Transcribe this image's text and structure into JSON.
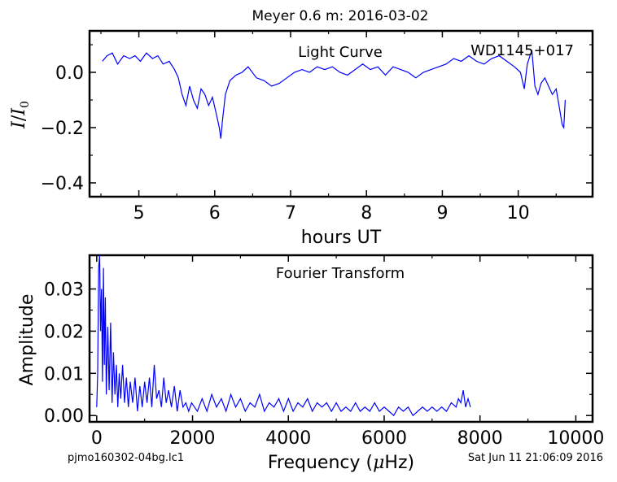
{
  "figure": {
    "title": "Meyer 0.6 m:  2016-03-02",
    "footer_left": "pjmo160302-04bg.lc1",
    "footer_right": "Sat Jun 11 21:06:09 2016",
    "line_color": "#0000ff"
  },
  "chart_data": [
    {
      "type": "line",
      "title": "Light Curve",
      "annotation": "WD1145+017",
      "xlabel": "hours UT",
      "ylabel_symbol": "I",
      "ylabel_denominator": "I",
      "ylabel_subscript": "0",
      "xlim": [
        4.35,
        10.98
      ],
      "ylim": [
        -0.45,
        0.15
      ],
      "xticks": [
        5,
        6,
        7,
        8,
        9,
        10
      ],
      "yticks": [
        0.0,
        -0.2,
        -0.4
      ],
      "ytick_labels": [
        "0.0",
        "−0.2",
        "−0.4"
      ],
      "x": [
        4.52,
        4.58,
        4.65,
        4.72,
        4.8,
        4.88,
        4.95,
        5.02,
        5.1,
        5.18,
        5.25,
        5.32,
        5.4,
        5.47,
        5.52,
        5.57,
        5.62,
        5.67,
        5.72,
        5.77,
        5.82,
        5.87,
        5.92,
        5.97,
        6.02,
        6.06,
        6.08,
        6.1,
        6.14,
        6.2,
        6.28,
        6.36,
        6.44,
        6.55,
        6.65,
        6.75,
        6.85,
        6.95,
        7.05,
        7.15,
        7.25,
        7.35,
        7.45,
        7.55,
        7.65,
        7.75,
        7.85,
        7.95,
        8.05,
        8.15,
        8.25,
        8.35,
        8.45,
        8.55,
        8.65,
        8.75,
        8.85,
        8.95,
        9.05,
        9.15,
        9.25,
        9.35,
        9.45,
        9.55,
        9.65,
        9.75,
        9.85,
        9.95,
        10.03,
        10.08,
        10.12,
        10.18,
        10.22,
        10.26,
        10.3,
        10.35,
        10.4,
        10.45,
        10.5,
        10.55,
        10.58,
        10.6,
        10.62
      ],
      "y": [
        0.04,
        0.06,
        0.07,
        0.03,
        0.06,
        0.05,
        0.06,
        0.04,
        0.07,
        0.05,
        0.06,
        0.03,
        0.04,
        0.01,
        -0.02,
        -0.08,
        -0.12,
        -0.05,
        -0.1,
        -0.13,
        -0.06,
        -0.08,
        -0.12,
        -0.09,
        -0.15,
        -0.2,
        -0.24,
        -0.18,
        -0.08,
        -0.03,
        -0.01,
        0.0,
        0.02,
        -0.02,
        -0.03,
        -0.05,
        -0.04,
        -0.02,
        0.0,
        0.01,
        0.0,
        0.02,
        0.01,
        0.02,
        0.0,
        -0.01,
        0.01,
        0.03,
        0.01,
        0.02,
        -0.01,
        0.02,
        0.01,
        0.0,
        -0.02,
        0.0,
        0.01,
        0.02,
        0.03,
        0.05,
        0.04,
        0.06,
        0.04,
        0.03,
        0.05,
        0.06,
        0.04,
        0.02,
        0.0,
        -0.06,
        0.03,
        0.08,
        -0.05,
        -0.08,
        -0.04,
        -0.02,
        -0.05,
        -0.08,
        -0.06,
        -0.14,
        -0.19,
        -0.2,
        -0.1
      ]
    },
    {
      "type": "line",
      "title": "Fourier Transform",
      "xlabel_prefix": "Frequency (",
      "xlabel_mu": "μ",
      "xlabel_suffix": "Hz)",
      "ylabel": "Amplitude",
      "xlim": [
        -150,
        10350
      ],
      "ylim": [
        -0.0015,
        0.038
      ],
      "xticks": [
        0,
        2000,
        4000,
        6000,
        8000,
        10000
      ],
      "yticks": [
        0.0,
        0.01,
        0.02,
        0.03
      ],
      "ytick_labels": [
        "0.00",
        "0.01",
        "0.02",
        "0.03"
      ],
      "x": [
        0,
        20,
        40,
        60,
        80,
        100,
        120,
        140,
        160,
        180,
        200,
        230,
        260,
        290,
        320,
        350,
        380,
        410,
        440,
        470,
        500,
        540,
        580,
        620,
        660,
        700,
        750,
        800,
        850,
        900,
        950,
        1000,
        1050,
        1100,
        1150,
        1200,
        1250,
        1300,
        1350,
        1400,
        1450,
        1500,
        1560,
        1620,
        1680,
        1740,
        1800,
        1860,
        1920,
        1980,
        2040,
        2100,
        2200,
        2300,
        2400,
        2500,
        2600,
        2700,
        2800,
        2900,
        3000,
        3100,
        3200,
        3300,
        3400,
        3500,
        3600,
        3700,
        3800,
        3900,
        4000,
        4100,
        4200,
        4300,
        4400,
        4500,
        4600,
        4700,
        4800,
        4900,
        5000,
        5100,
        5200,
        5300,
        5400,
        5500,
        5600,
        5700,
        5800,
        5900,
        6000,
        6100,
        6200,
        6300,
        6400,
        6500,
        6600,
        6700,
        6800,
        6900,
        7000,
        7100,
        7200,
        7300,
        7400,
        7500,
        7550,
        7600,
        7650,
        7700,
        7750,
        7800
      ],
      "y": [
        0.002,
        0.01,
        0.035,
        0.038,
        0.02,
        0.03,
        0.008,
        0.035,
        0.012,
        0.028,
        0.005,
        0.021,
        0.006,
        0.022,
        0.003,
        0.015,
        0.005,
        0.012,
        0.002,
        0.01,
        0.004,
        0.012,
        0.003,
        0.009,
        0.002,
        0.008,
        0.003,
        0.009,
        0.001,
        0.007,
        0.002,
        0.008,
        0.003,
        0.009,
        0.002,
        0.012,
        0.004,
        0.006,
        0.002,
        0.009,
        0.003,
        0.006,
        0.002,
        0.007,
        0.001,
        0.006,
        0.002,
        0.003,
        0.001,
        0.003,
        0.002,
        0.001,
        0.004,
        0.001,
        0.005,
        0.002,
        0.004,
        0.001,
        0.005,
        0.002,
        0.004,
        0.001,
        0.003,
        0.002,
        0.005,
        0.001,
        0.003,
        0.002,
        0.004,
        0.001,
        0.004,
        0.001,
        0.003,
        0.002,
        0.004,
        0.001,
        0.003,
        0.002,
        0.003,
        0.001,
        0.003,
        0.001,
        0.002,
        0.001,
        0.003,
        0.001,
        0.002,
        0.001,
        0.003,
        0.001,
        0.002,
        0.001,
        0.0,
        0.002,
        0.001,
        0.002,
        0.0,
        0.001,
        0.002,
        0.001,
        0.002,
        0.001,
        0.002,
        0.001,
        0.003,
        0.002,
        0.004,
        0.003,
        0.006,
        0.002,
        0.004,
        0.002
      ]
    }
  ]
}
